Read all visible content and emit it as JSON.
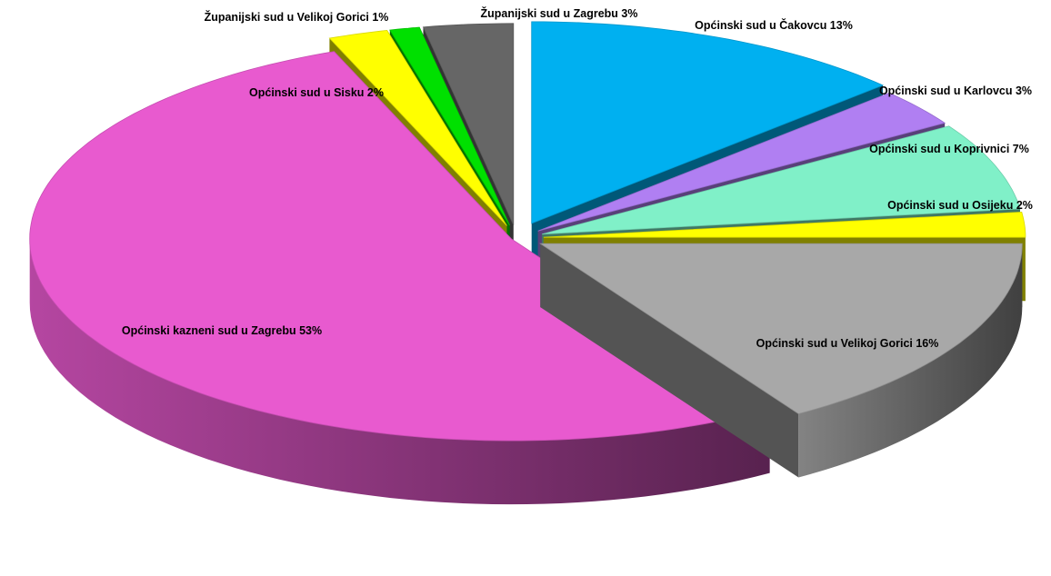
{
  "chart_data": {
    "type": "pie",
    "style": "3d-exploded",
    "title": "",
    "legend": "none",
    "slices": [
      {
        "label": "Općinski sud u Čakovcu",
        "value": 13,
        "color": "#00B0F0",
        "label_text": "Općinski sud u Čakovcu 13%"
      },
      {
        "label": "Općinski sud u Karlovcu",
        "value": 3,
        "color": "#B07FF2",
        "label_text": "Općinski sud u Karlovcu 3%"
      },
      {
        "label": "Općinski sud u Koprivnici",
        "value": 7,
        "color": "#80F0C8",
        "label_text": "Općinski sud u Koprivnici 7%"
      },
      {
        "label": "Općinski sud u Osijeku",
        "value": 2,
        "color": "#FFFF00",
        "label_text": "Općinski sud u Osijeku 2%"
      },
      {
        "label": "Općinski sud u Velikoj Gorici",
        "value": 16,
        "color": "#A8A8A8",
        "label_text": "Općinski sud u Velikoj Gorici 16%"
      },
      {
        "label": "Općinski kazneni sud u Zagrebu",
        "value": 53,
        "color": "#E85ACF",
        "label_text": "Općinski kazneni sud u Zagrebu 53%"
      },
      {
        "label": "Općinski sud u Sisku",
        "value": 2,
        "color": "#FFFF00",
        "label_text": "Općinski sud u Sisku 2%"
      },
      {
        "label": "Županijski sud u Velikoj Gorici",
        "value": 1,
        "color": "#00E000",
        "label_text": "Županijski sud u Velikoj Gorici 1%"
      },
      {
        "label": "Županijski sud u Zagrebu",
        "value": 3,
        "color": "#666666",
        "label_text": "Županijski sud u Zagrebu 3%"
      }
    ]
  }
}
